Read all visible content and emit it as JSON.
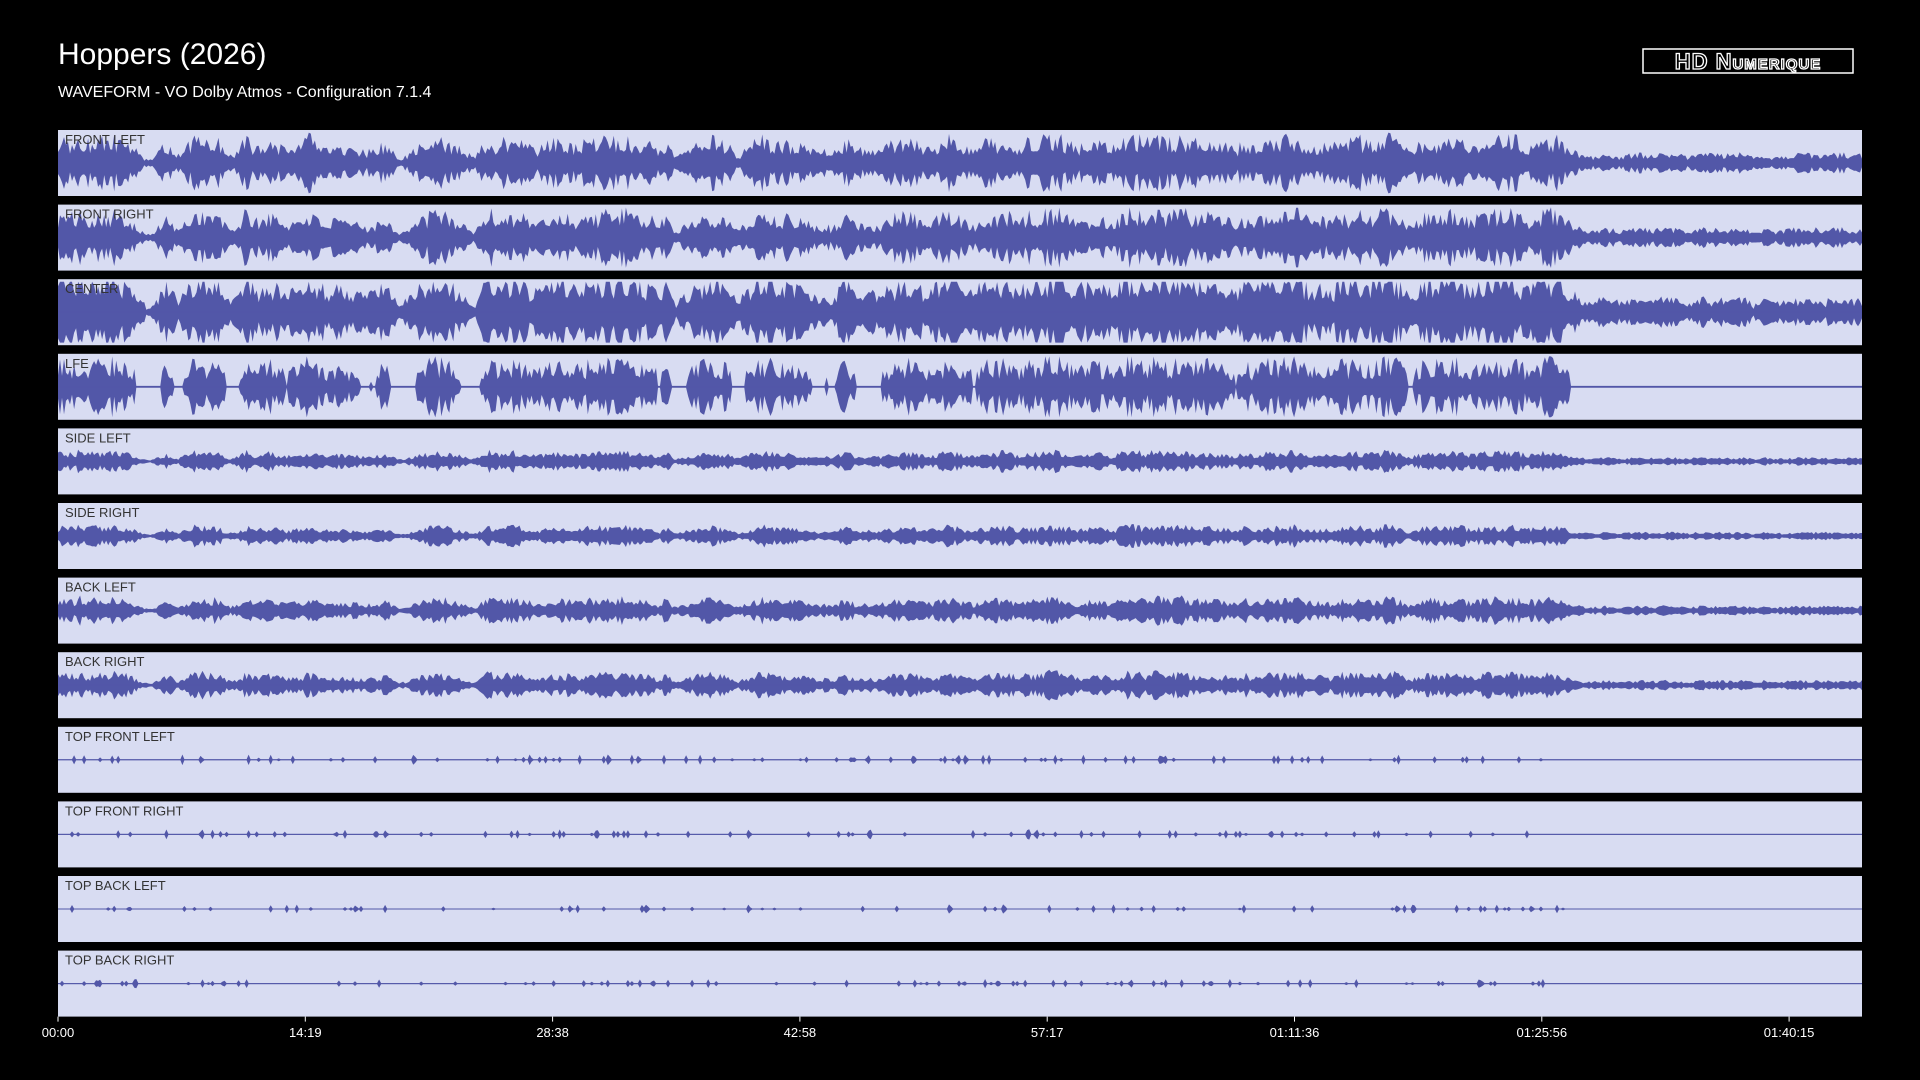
{
  "header": {
    "title": "Hoppers (2026)",
    "subtitle": "WAVEFORM - VO Dolby Atmos - Configuration 7.1.4",
    "logo": "HD Numerique"
  },
  "channels": [
    "FRONT LEFT",
    "FRONT RIGHT",
    "CENTER",
    "LFE",
    "SIDE LEFT",
    "SIDE RIGHT",
    "BACK LEFT",
    "BACK RIGHT",
    "TOP FRONT LEFT",
    "TOP FRONT RIGHT",
    "TOP BACK LEFT",
    "TOP BACK RIGHT"
  ],
  "time_axis": [
    "00:00",
    "14:19",
    "28:38",
    "42:58",
    "57:17",
    "01:11:36",
    "01:25:56",
    "01:40:15"
  ]
}
